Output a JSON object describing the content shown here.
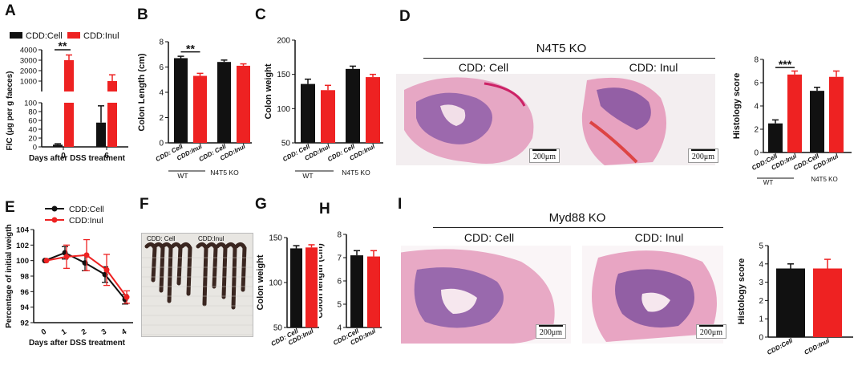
{
  "panels": {
    "A": {
      "label": "A"
    },
    "B": {
      "label": "B"
    },
    "C": {
      "label": "C"
    },
    "D": {
      "label": "D"
    },
    "E": {
      "label": "E"
    },
    "F": {
      "label": "F"
    },
    "G": {
      "label": "G"
    },
    "H": {
      "label": "H"
    },
    "I": {
      "label": "I"
    }
  },
  "colors": {
    "cell": "#111111",
    "inul": "#ee2222",
    "tissue": "#e58fb5",
    "epith": "#7b4fa3"
  },
  "panelD_image": {
    "title": "N4T5 KO",
    "left_label": "CDD: Cell",
    "right_label": "CDD: Inul",
    "scale_left": "200μm",
    "scale_right": "200μm"
  },
  "panelI_image": {
    "title": "Myd88 KO",
    "left_label": "CDD: Cell",
    "right_label": "CDD: Inul",
    "scale_left": "200μm",
    "scale_right": "200μm"
  },
  "panelF_image": {
    "left_label": "CDD: Cell",
    "right_label": "CDD:Inul"
  },
  "chart_data": [
    {
      "id": "A",
      "type": "bar",
      "legend": [
        "CDD:Cell",
        "CDD:Inul"
      ],
      "categories": [
        "0",
        "6"
      ],
      "xlabel": "Days after DSS treatment",
      "ylabel": "FIC (μg per g faeces)",
      "yticks_upper": [
        "1000",
        "2000",
        "3000",
        "4000"
      ],
      "yticks_lower": [
        "0",
        "20",
        "40",
        "60",
        "80",
        "100"
      ],
      "series": [
        {
          "name": "CDD:Cell",
          "values": [
            5,
            55
          ],
          "err": [
            2,
            38
          ]
        },
        {
          "name": "CDD:Inul",
          "values": [
            3000,
            1000
          ],
          "err": [
            500,
            600
          ]
        }
      ],
      "significance": "**"
    },
    {
      "id": "B",
      "type": "bar",
      "categories": [
        "CDD: Cell",
        "CDD:Inul",
        "CDD: Cell",
        "CDD:Inul"
      ],
      "groups": [
        "WT",
        "N4T5 KO"
      ],
      "ylabel": "Colon Length (cm)",
      "ylim": [
        0,
        8
      ],
      "yticks": [
        "0",
        "2",
        "4",
        "6",
        "8"
      ],
      "values": [
        6.7,
        5.3,
        6.4,
        6.1
      ],
      "err": [
        0.15,
        0.2,
        0.15,
        0.15
      ],
      "significance": "**"
    },
    {
      "id": "C",
      "type": "bar",
      "categories": [
        "CDD: Cell",
        "CDD:Inul",
        "CDD: Cell",
        "CDD:Inul"
      ],
      "groups": [
        "WT",
        "N4T5 KO"
      ],
      "ylabel": "Colon weight",
      "ylim": [
        50,
        200
      ],
      "yticks": [
        "50",
        "100",
        "150",
        "200"
      ],
      "values": [
        136,
        127,
        158,
        146
      ],
      "err": [
        7,
        7,
        4,
        4
      ]
    },
    {
      "id": "D",
      "type": "bar",
      "categories": [
        "CDD:Cell",
        "CDD:Inul",
        "CDD:Cell",
        "CDD:Inul"
      ],
      "groups": [
        "WT",
        "N4T5 KO"
      ],
      "ylabel": "Histology score",
      "ylim": [
        0,
        8
      ],
      "yticks": [
        "0",
        "2",
        "4",
        "6",
        "8"
      ],
      "values": [
        2.5,
        6.7,
        5.3,
        6.5
      ],
      "err": [
        0.3,
        0.3,
        0.3,
        0.5
      ],
      "significance": "***"
    },
    {
      "id": "E",
      "type": "line",
      "legend": [
        "CDD:Cell",
        "CDD:Inul"
      ],
      "x": [
        0,
        1,
        2,
        3,
        4
      ],
      "xticks": [
        "0",
        "1",
        "2",
        "3",
        "4"
      ],
      "xlabel": "Days after DSS treatment",
      "ylabel": "Percentage of initial weigth",
      "ylim": [
        92,
        104
      ],
      "yticks": [
        "92",
        "94",
        "96",
        "98",
        "100",
        "102",
        "104"
      ],
      "series": [
        {
          "name": "CDD:Cell",
          "values": [
            100,
            101,
            99.7,
            98.2,
            95
          ],
          "err": [
            0,
            0.8,
            1.0,
            1.0,
            0.6
          ]
        },
        {
          "name": "CDD:Inul",
          "values": [
            100,
            100.5,
            100.7,
            98.8,
            95.3
          ],
          "err": [
            0,
            1.5,
            2.0,
            2.0,
            0.8
          ]
        }
      ]
    },
    {
      "id": "G",
      "type": "bar",
      "categories": [
        "CDD: Cell",
        "CDD:Inul"
      ],
      "ylabel": "Colon weight",
      "ylim": [
        50,
        150
      ],
      "yticks": [
        "50",
        "100",
        "150"
      ],
      "values": [
        138,
        139
      ],
      "err": [
        3,
        3
      ]
    },
    {
      "id": "H",
      "type": "bar",
      "categories": [
        "CDD:Cell",
        "CDD:Inul"
      ],
      "ylabel": "Colon length (cm)",
      "ylim": [
        4,
        8
      ],
      "yticks": [
        "4",
        "5",
        "6",
        "7",
        "8"
      ],
      "values": [
        7.1,
        7.05
      ],
      "err": [
        0.2,
        0.25
      ]
    },
    {
      "id": "I",
      "type": "bar",
      "categories": [
        "CDD:Cell",
        "CDD:Inul"
      ],
      "ylabel": "Histology score",
      "ylim": [
        0,
        5
      ],
      "yticks": [
        "0",
        "1",
        "2",
        "3",
        "4",
        "5"
      ],
      "values": [
        3.75,
        3.75
      ],
      "err": [
        0.25,
        0.5
      ]
    }
  ]
}
